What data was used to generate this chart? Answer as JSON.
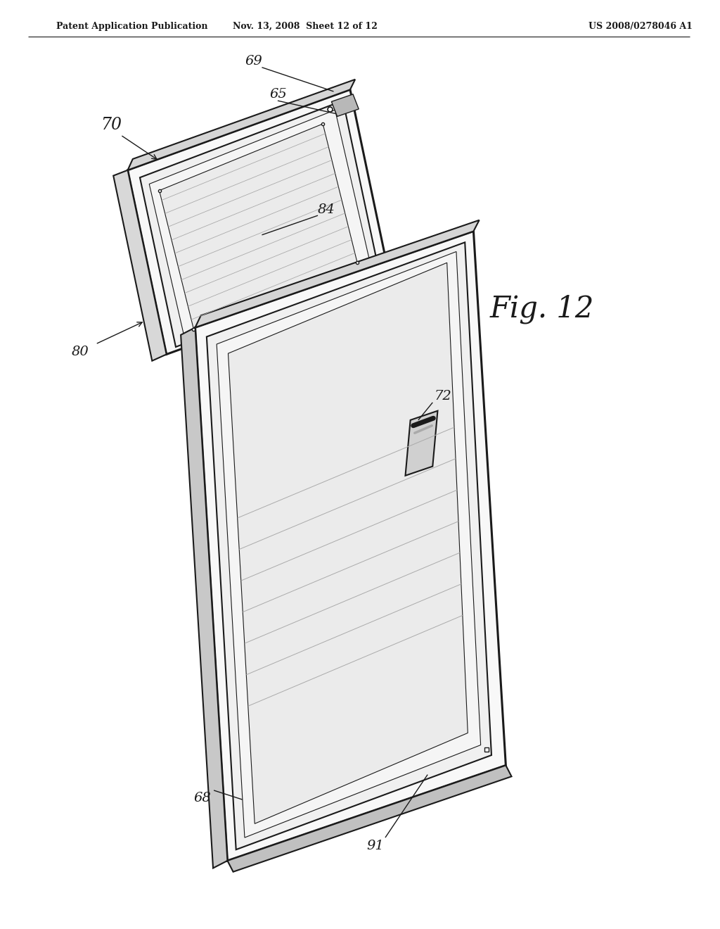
{
  "background": "#ffffff",
  "line_color": "#1a1a1a",
  "header_left": "Patent Application Publication",
  "header_mid": "Nov. 13, 2008  Sheet 12 of 12",
  "header_right": "US 2008/0278046 A1",
  "fig_label": "Fig. 12",
  "lw_main": 1.5,
  "lw_thick": 2.2,
  "lw_thin": 0.8
}
